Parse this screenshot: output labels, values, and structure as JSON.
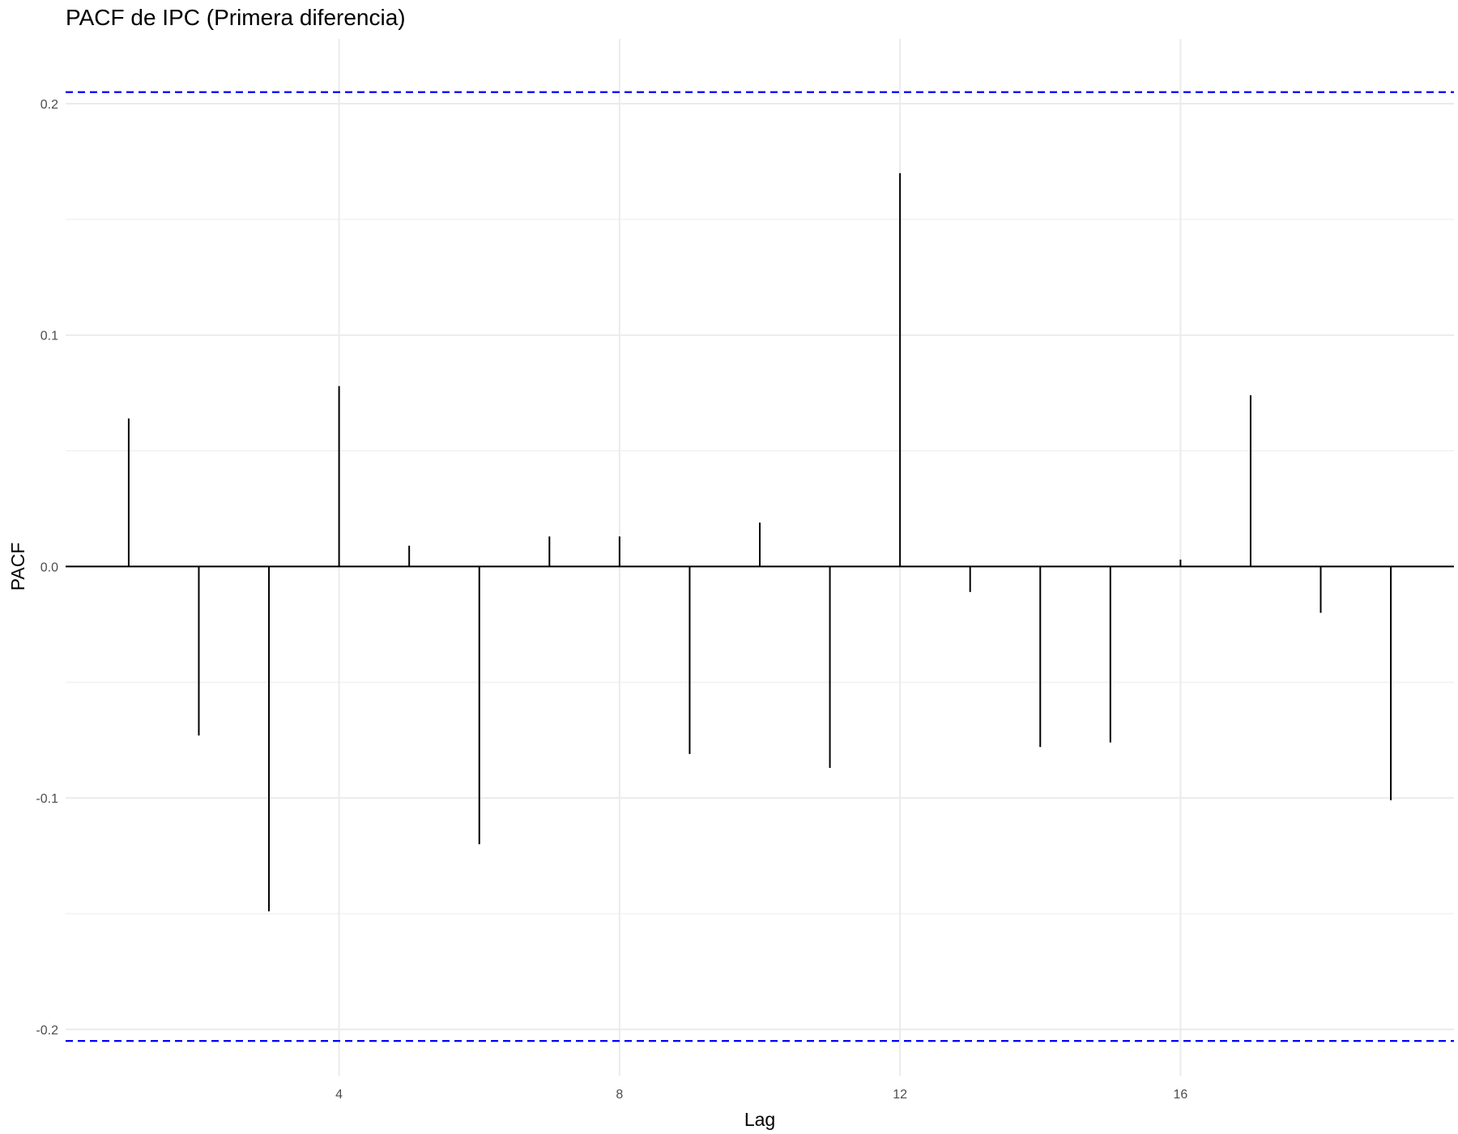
{
  "chart_data": {
    "type": "bar",
    "title": "PACF de IPC (Primera diferencia)",
    "xlabel": "Lag",
    "ylabel": "PACF",
    "x": [
      1,
      2,
      3,
      4,
      5,
      6,
      7,
      8,
      9,
      10,
      11,
      12,
      13,
      14,
      15,
      16,
      17,
      18,
      19
    ],
    "values": [
      0.064,
      -0.073,
      -0.149,
      0.078,
      0.009,
      -0.12,
      0.013,
      0.013,
      -0.081,
      0.019,
      -0.087,
      0.17,
      -0.011,
      -0.078,
      -0.076,
      0.003,
      0.074,
      -0.02,
      -0.101
    ],
    "xlim": [
      0.1,
      19.9
    ],
    "ylim": [
      -0.22,
      0.228
    ],
    "x_ticks": [
      4,
      8,
      12,
      16
    ],
    "x_tick_labels": [
      "4",
      "8",
      "12",
      "16"
    ],
    "y_ticks": [
      -0.2,
      -0.1,
      0.0,
      0.1,
      0.2
    ],
    "y_tick_labels": [
      "-0.2",
      "-0.1",
      "0.0",
      "0.1",
      "0.2"
    ],
    "confidence_bounds": [
      0.205,
      -0.205
    ],
    "bound_color": "#0000ff",
    "bar_color": "#000000",
    "grid": true,
    "grid_color": "#ebebeb",
    "legend": false
  }
}
